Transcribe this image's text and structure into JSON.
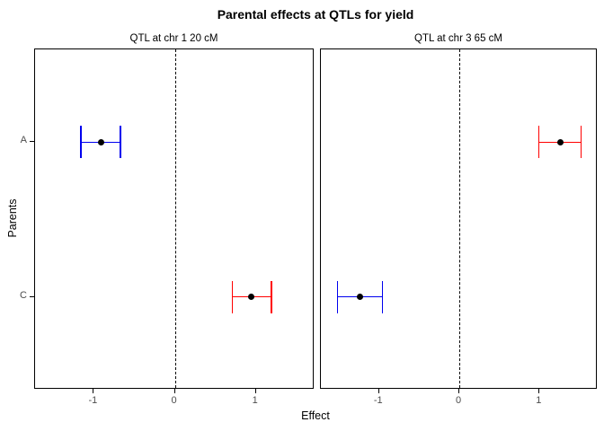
{
  "title": "Parental effects at QTLs for yield",
  "colors": {
    "blue": "#0000EE",
    "red": "#FF0000",
    "point": "#000000",
    "axis_text": "#4d4d4d",
    "panel_border": "#000000"
  },
  "chart_data": {
    "type": "scatter",
    "subtype": "dot-with-horizontal-errorbars",
    "title": "Parental effects at QTLs for yield",
    "xlabel": "Effect",
    "ylabel": "Parents",
    "categories": [
      "A",
      "C"
    ],
    "x_ticks": [
      -1,
      0,
      1
    ],
    "xlim": [
      -1.725,
      1.725
    ],
    "grid": false,
    "zero_line": {
      "x": 0,
      "style": "dashed",
      "color": "#000000"
    },
    "panels": [
      {
        "label": "QTL at chr 1 20 cM",
        "points": [
          {
            "parent": "A",
            "estimate": -0.91,
            "lo": -1.16,
            "hi": -0.67,
            "color": "blue"
          },
          {
            "parent": "C",
            "estimate": 0.94,
            "lo": 0.71,
            "hi": 1.19,
            "color": "red"
          }
        ]
      },
      {
        "label": "QTL at chr 3 65 cM",
        "points": [
          {
            "parent": "A",
            "estimate": 1.26,
            "lo": 0.99,
            "hi": 1.52,
            "color": "red"
          },
          {
            "parent": "C",
            "estimate": -1.24,
            "lo": -1.52,
            "hi": -0.96,
            "color": "blue"
          }
        ]
      }
    ]
  }
}
